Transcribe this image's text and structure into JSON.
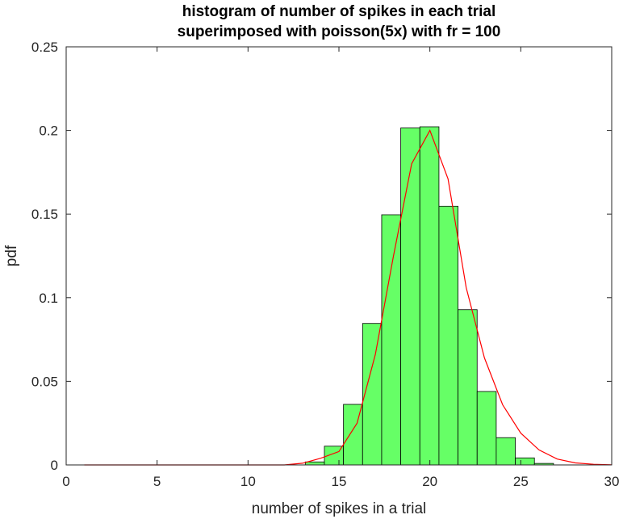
{
  "chart_data": {
    "type": "bar",
    "title": [
      "histogram of number of spikes in each trial",
      "superimposed with poisson(5x) with fr = 100"
    ],
    "xlabel": "number of spikes in a trial",
    "ylabel": "pdf",
    "xlim": [
      0,
      30
    ],
    "ylim": [
      0,
      0.25
    ],
    "xticks": [
      0,
      5,
      10,
      15,
      20,
      25,
      30
    ],
    "xtick_labels": [
      "0",
      "5",
      "10",
      "15",
      "20",
      "25",
      "30"
    ],
    "yticks": [
      0,
      0.05,
      0.1,
      0.15,
      0.2,
      0.25
    ],
    "ytick_labels": [
      "0",
      "0.05",
      "0.1",
      "0.15",
      "0.2",
      "0.25"
    ],
    "grid": false,
    "histogram": {
      "bin_width": 1.05,
      "bin_start": 13.15,
      "values": [
        0.0018,
        0.0112,
        0.0362,
        0.0846,
        0.1496,
        0.2015,
        0.2022,
        0.1547,
        0.0928,
        0.0439,
        0.0163,
        0.0042,
        0.0009
      ],
      "color": "#66ff66",
      "edge_color": "#000000"
    },
    "series": [
      {
        "type": "line",
        "color": "#ff0000",
        "x": [
          1,
          2,
          3,
          4,
          5,
          6,
          7,
          8,
          9,
          10,
          11,
          12,
          13,
          14,
          15,
          16,
          17,
          18,
          19,
          20,
          21,
          22,
          23,
          24,
          25,
          26,
          27,
          28,
          29,
          30
        ],
        "values": [
          0.0,
          0.0,
          0.0,
          0.0,
          0.0,
          0.0,
          0.0,
          0.0,
          0.0,
          0.0,
          0.0,
          0.0,
          0.001,
          0.004,
          0.008,
          0.025,
          0.066,
          0.125,
          0.18,
          0.2,
          0.171,
          0.106,
          0.064,
          0.036,
          0.019,
          0.009,
          0.0035,
          0.0012,
          0.0004,
          0.0001
        ]
      }
    ]
  }
}
